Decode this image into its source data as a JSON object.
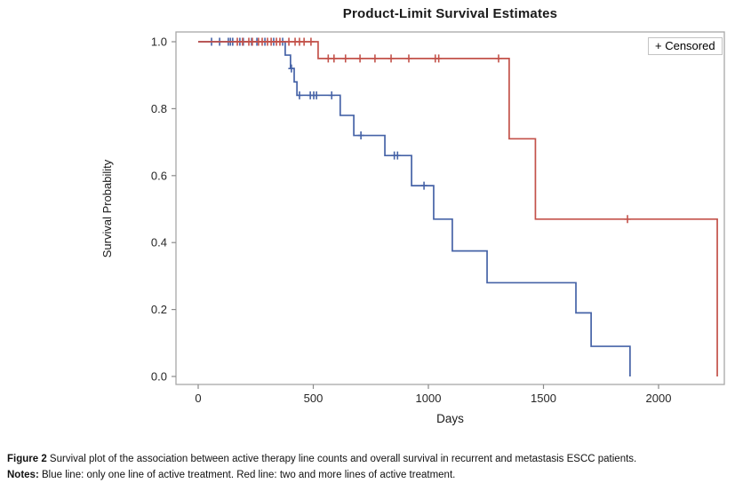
{
  "title": "Product-Limit Survival Estimates",
  "legend": {
    "label": "+ Censored"
  },
  "axes": {
    "x": {
      "label": "Days",
      "ticks": [
        0,
        500,
        1000,
        1500,
        2000
      ],
      "min": 0,
      "max": 2285
    },
    "y": {
      "label": "Survival Probability",
      "ticks": [
        "0.0",
        "0.2",
        "0.4",
        "0.6",
        "0.8",
        "1.0"
      ],
      "tick_values": [
        0.0,
        0.2,
        0.4,
        0.6,
        0.8,
        1.0
      ],
      "min": 0,
      "max": 1
    }
  },
  "chart_data": {
    "type": "line",
    "subtype": "kaplan-meier-step-curves",
    "title": "Product-Limit Survival Estimates",
    "xlabel": "Days",
    "ylabel": "Survival Probability",
    "xlim": [
      0,
      2285
    ],
    "ylim": [
      0,
      1
    ],
    "grid": false,
    "legend_position": "top-right-inside",
    "legend_text": "+ Censored",
    "series": [
      {
        "name": "Blue line: only one line of active treatment",
        "color": "#4663a7",
        "steps": [
          [
            0,
            1.0
          ],
          [
            378,
            0.96
          ],
          [
            401,
            0.92
          ],
          [
            417,
            0.88
          ],
          [
            429,
            0.84
          ],
          [
            617,
            0.78
          ],
          [
            676,
            0.72
          ],
          [
            811,
            0.66
          ],
          [
            927,
            0.57
          ],
          [
            1023,
            0.47
          ],
          [
            1104,
            0.375
          ],
          [
            1255,
            0.28
          ],
          [
            1641,
            0.19
          ],
          [
            1707,
            0.09
          ],
          [
            1876,
            0.0
          ]
        ],
        "censored": [
          [
            58,
            1.0
          ],
          [
            93,
            1.0
          ],
          [
            131,
            1.0
          ],
          [
            140,
            1.0
          ],
          [
            150,
            1.0
          ],
          [
            181,
            1.0
          ],
          [
            196,
            1.0
          ],
          [
            232,
            1.0
          ],
          [
            255,
            1.0
          ],
          [
            290,
            1.0
          ],
          [
            328,
            1.0
          ],
          [
            367,
            1.0
          ],
          [
            405,
            0.92
          ],
          [
            440,
            0.84
          ],
          [
            487,
            0.84
          ],
          [
            502,
            0.84
          ],
          [
            514,
            0.84
          ],
          [
            580,
            0.84
          ],
          [
            707,
            0.72
          ],
          [
            852,
            0.66
          ],
          [
            866,
            0.66
          ],
          [
            981,
            0.57
          ]
        ]
      },
      {
        "name": "Red line: two and more lines of active treatment",
        "color": "#c3524a",
        "steps": [
          [
            0,
            1.0
          ],
          [
            521,
            0.95
          ],
          [
            1351,
            0.71
          ],
          [
            1465,
            0.47
          ],
          [
            2255,
            0.0
          ]
        ],
        "censored": [
          [
            170,
            1.0
          ],
          [
            193,
            1.0
          ],
          [
            220,
            1.0
          ],
          [
            235,
            1.0
          ],
          [
            262,
            1.0
          ],
          [
            278,
            1.0
          ],
          [
            301,
            1.0
          ],
          [
            317,
            1.0
          ],
          [
            340,
            1.0
          ],
          [
            355,
            1.0
          ],
          [
            394,
            1.0
          ],
          [
            421,
            1.0
          ],
          [
            440,
            1.0
          ],
          [
            460,
            1.0
          ],
          [
            490,
            1.0
          ],
          [
            565,
            0.95
          ],
          [
            590,
            0.95
          ],
          [
            640,
            0.95
          ],
          [
            703,
            0.95
          ],
          [
            768,
            0.95
          ],
          [
            838,
            0.95
          ],
          [
            915,
            0.95
          ],
          [
            1030,
            0.95
          ],
          [
            1045,
            0.95
          ],
          [
            1305,
            0.95
          ],
          [
            1865,
            0.47
          ]
        ]
      }
    ]
  },
  "caption": {
    "figure_label": "Figure 2",
    "figure_text": " Survival plot of the association between active therapy line counts and overall survival in recurrent and metastasis ESCC patients.",
    "notes_label": "Notes:",
    "notes_text": " Blue line: only one line of active treatment. Red line: two and more lines of active treatment."
  },
  "colors": {
    "blue_line": "#4663a7",
    "red_line": "#c3524a",
    "plot_border": "#a8a8a8",
    "tick": "#8a8a8a"
  }
}
